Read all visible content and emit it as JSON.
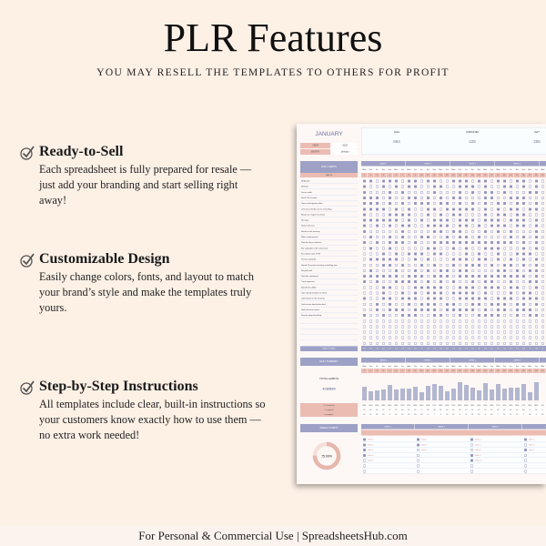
{
  "title": "PLR Features",
  "subtitle": "YOU MAY RESELL THE TEMPLATES TO OTHERS FOR PROFIT",
  "features": [
    {
      "icon": "checkbox-check-icon",
      "heading": "Ready-to-Sell",
      "body": "Each spreadsheet is fully prepared for resale — just add your branding and start selling right away!"
    },
    {
      "icon": "checkbox-check-icon",
      "heading": "Customizable Design",
      "body": "Easily change colors, fonts, and layout to match your brand’s style and make the templates truly yours."
    },
    {
      "icon": "checkbox-check-icon",
      "heading": "Step-by-Step Instructions",
      "body": "All templates include clear, built-in instructions so your customers know exactly how to use them — no extra work needed!"
    }
  ],
  "footer": "For Personal & Commercial Use  |  SpreadsheetsHub.com",
  "colors": {
    "background": "#fdf1e6",
    "header_purple": "#9da1c5",
    "accent_pink": "#ebbcb2",
    "checked": "#8c90c0"
  },
  "sheet": {
    "month_title": "JANUARY",
    "year_label": "YEAR",
    "year_value": "2025",
    "month_label": "MONTH",
    "month_value": "January",
    "stats": [
      {
        "label": "GOAL",
        "value": "684"
      },
      {
        "label": "COMPLETED",
        "value": "428"
      },
      {
        "label": "LEFT",
        "value": "256"
      }
    ],
    "daily_habits_label": "DAILY HABITS",
    "habits_label": "HABITS",
    "weeks": [
      "WEEK 1",
      "WEEK 2",
      "WEEK 3",
      "WEEK 4",
      "WEEK 5"
    ],
    "day_names": [
      "Wed",
      "Thu",
      "Fri",
      "Sat",
      "Sun",
      "Mon",
      "Tue"
    ],
    "habits": [
      {
        "name": "Meditation",
        "checks": "1101110110110011101101101101"
      },
      {
        "name": "Workout",
        "checks": "1001010110011001110100110101"
      },
      {
        "name": "Go to a walk",
        "checks": "1000101000010001010110100011"
      },
      {
        "name": "Drink 2.5L of water",
        "checks": "1110100110101011000110011100"
      },
      {
        "name": "Clean and organize office",
        "checks": "1110101011101101010101101101"
      },
      {
        "name": "Limit social media use to 1 hour/day",
        "checks": "1111010100110111110101011011"
      },
      {
        "name": "Read one chapter of a book",
        "checks": "1000111100101011000101101100"
      },
      {
        "name": "No sugar",
        "checks": "1111110101011101110111011101"
      },
      {
        "name": "Sleep 7-8 hours",
        "checks": "1010101100111101101011101101"
      },
      {
        "name": "Stretch in the morning",
        "checks": "1000001000011011000101010001"
      },
      {
        "name": "Write a daily journal",
        "checks": "0100101001100101101000010101"
      },
      {
        "name": "Plan the day in advance",
        "checks": "1010111010011111111111110101"
      },
      {
        "name": "Eat vegetables with every meal",
        "checks": "0100100000110010100111000101"
      },
      {
        "name": "No caffeine after 2 PM",
        "checks": "0001010111011000101001001110"
      },
      {
        "name": "Practice gratitude",
        "checks": "0111110010100011101101010101"
      },
      {
        "name": "Spend 15 minutes learning something new",
        "checks": "0001101001010010111010110101"
      },
      {
        "name": "No junk food",
        "checks": "0100010010101101100001101011"
      },
      {
        "name": "Declutter workspace",
        "checks": "1111110111011101111111111101"
      },
      {
        "name": "Track expenses",
        "checks": "1010011110101010010110010011"
      },
      {
        "name": "Spend time offline",
        "checks": "0001100011111001110111011001"
      },
      {
        "name": "Call a family member or friend",
        "checks": "0001001010111011110100010110"
      },
      {
        "name": "Cold shower in the morning",
        "checks": "1001101110111001111101110111"
      },
      {
        "name": "Limit screen time before bed",
        "checks": "0010100101110110011011101101"
      },
      {
        "name": "Daily skincare routine",
        "checks": "0010111011110111110101101110"
      },
      {
        "name": "Practice deep breathing",
        "checks": "1001001110011001001111001011"
      }
    ],
    "empty_rows": 5,
    "daily_totals_label": "DAILY TOTALS",
    "daily_summary_label": "DAILY SUMMARY",
    "total_habits_label": "TOTAL HABITS",
    "total_habits_value": "428/684",
    "summary_rows": [
      "% Completed",
      "Completed",
      "Incomplete"
    ],
    "weekly_habits_label": "WEEKLY HABITS",
    "weekly_progress": "75.00%",
    "weekly_progress_value": 0.75,
    "weekly": [
      {
        "week": "WEEK 1",
        "items": [
          {
            "name": "Habit 1",
            "done": true
          },
          {
            "name": "Habit 2",
            "done": true
          },
          {
            "name": "Habit 3",
            "done": true
          },
          {
            "name": "Habit 4",
            "done": true
          },
          {
            "name": "Habit 5",
            "done": false
          },
          {
            "name": "",
            "done": false
          },
          {
            "name": "",
            "done": false
          }
        ]
      },
      {
        "week": "WEEK 2",
        "items": [
          {
            "name": "Habit 1",
            "done": true
          },
          {
            "name": "Habit 2",
            "done": true
          },
          {
            "name": "Habit 3",
            "done": false
          },
          {
            "name": "",
            "done": false
          },
          {
            "name": "",
            "done": false
          },
          {
            "name": "",
            "done": false
          },
          {
            "name": "",
            "done": false
          }
        ]
      },
      {
        "week": "WEEK 3",
        "items": [
          {
            "name": "Habit 6",
            "done": true
          },
          {
            "name": "Habit 7",
            "done": false
          },
          {
            "name": "Habit 8",
            "done": false
          },
          {
            "name": "Habit 9",
            "done": true
          },
          {
            "name": "Habit 10",
            "done": true
          },
          {
            "name": "",
            "done": false
          },
          {
            "name": "",
            "done": false
          }
        ]
      },
      {
        "week": "WEEK 4",
        "items": [
          {
            "name": "Habit 1",
            "done": true
          },
          {
            "name": "Habit 4",
            "done": false
          },
          {
            "name": "Habit 7",
            "done": true
          },
          {
            "name": "",
            "done": false
          },
          {
            "name": "",
            "done": false
          },
          {
            "name": "",
            "done": false
          },
          {
            "name": "",
            "done": false
          }
        ]
      }
    ]
  }
}
